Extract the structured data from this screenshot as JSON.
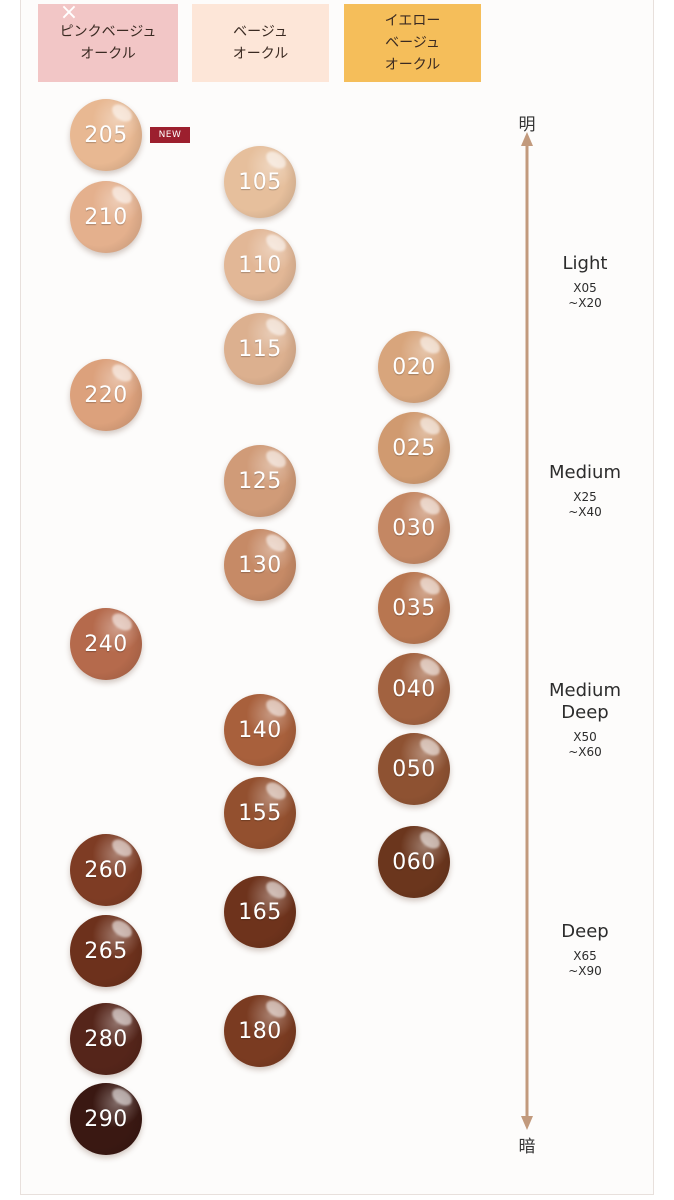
{
  "close_glyph": "×",
  "headers": {
    "pink": "ピンクベージュ\nオークル",
    "beige": "ベージュ\nオークル",
    "yellow": "イエロー\nベージュ\nオークル"
  },
  "new_badge": "NEW",
  "axis": {
    "top": "明",
    "bottom": "暗"
  },
  "categories": [
    {
      "name": "Light",
      "range": "X05\n~X20"
    },
    {
      "name": "Medium",
      "range": "X25\n~X40"
    },
    {
      "name": "Medium\nDeep",
      "range": "X50\n~X60"
    },
    {
      "name": "Deep",
      "range": "X65\n~X90"
    }
  ],
  "shades": {
    "pink": [
      "205",
      "210",
      "220",
      "240",
      "260",
      "265",
      "280",
      "290"
    ],
    "beige": [
      "105",
      "110",
      "115",
      "125",
      "130",
      "140",
      "155",
      "165",
      "180"
    ],
    "yellow": [
      "020",
      "025",
      "030",
      "035",
      "040",
      "050",
      "060"
    ]
  },
  "shade_colors": {
    "205": "#e8b892",
    "210": "#e4b08d",
    "220": "#dca17c",
    "240": "#b56a4c",
    "260": "#7e3c24",
    "265": "#6d311c",
    "280": "#55251a",
    "290": "#3a1812",
    "105": "#e6bf9c",
    "110": "#e2b796",
    "115": "#dcb08f",
    "125": "#d09b78",
    "130": "#c68a66",
    "140": "#a8603c",
    "155": "#93502f",
    "165": "#6e331c",
    "180": "#7a3b21",
    "020": "#d8a57c",
    "025": "#d09a70",
    "030": "#c48763",
    "035": "#b87650",
    "040": "#a26240",
    "050": "#8e5232",
    "060": "#6b361d"
  },
  "colors": {
    "axis_line": "#c29a7d",
    "header_pink": "#f2c6c6",
    "header_beige": "#fde6d8",
    "header_yellow": "#f5be5a",
    "new_badge": "#9c1f2e"
  }
}
